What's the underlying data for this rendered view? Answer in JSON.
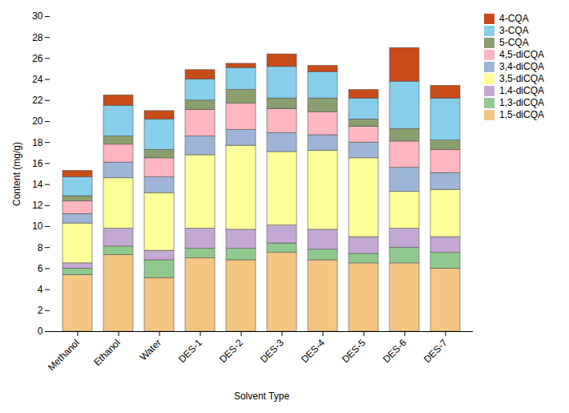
{
  "chart_data": {
    "type": "bar",
    "stacked": true,
    "xlabel": "Solvent Type",
    "ylabel": "Content (mg/g)",
    "categories": [
      "Methanol",
      "Ethanol",
      "Water",
      "DES-1",
      "DES-2",
      "DES-3",
      "DES-4",
      "DES-5",
      "DES-6",
      "DES-7"
    ],
    "series": [
      {
        "name": "1,5-diCQA",
        "color": "#F5C584",
        "values": [
          5.4,
          7.3,
          5.1,
          7.0,
          6.8,
          7.5,
          6.8,
          6.5,
          6.5,
          6.0
        ]
      },
      {
        "name": "1,3-diCQA",
        "color": "#90C990",
        "values": [
          0.6,
          0.8,
          1.7,
          0.9,
          1.1,
          0.9,
          1.0,
          0.9,
          1.5,
          1.5
        ]
      },
      {
        "name": "1,4-diCQA",
        "color": "#C4A8D4",
        "values": [
          0.5,
          1.7,
          0.9,
          1.9,
          1.8,
          1.7,
          1.9,
          1.6,
          1.8,
          1.5
        ]
      },
      {
        "name": "3,5-diCQA",
        "color": "#FFFF99",
        "values": [
          3.8,
          4.8,
          5.5,
          7.0,
          8.0,
          7.0,
          7.5,
          7.5,
          3.5,
          4.5
        ]
      },
      {
        "name": "3,4-diCQA",
        "color": "#9EB5D8",
        "values": [
          0.9,
          1.5,
          1.5,
          1.8,
          1.5,
          1.8,
          1.5,
          1.5,
          2.3,
          1.6
        ]
      },
      {
        "name": "4,5-diCQA",
        "color": "#FFB6C1",
        "values": [
          1.2,
          1.7,
          1.8,
          2.5,
          2.5,
          2.3,
          2.2,
          1.5,
          2.5,
          2.2
        ]
      },
      {
        "name": "5-CQA",
        "color": "#8B9E6E",
        "values": [
          0.5,
          0.8,
          0.8,
          0.9,
          1.3,
          1.0,
          1.3,
          0.7,
          1.2,
          0.9
        ]
      },
      {
        "name": "3-CQA",
        "color": "#87CEEB",
        "values": [
          1.8,
          2.9,
          2.9,
          2.0,
          2.1,
          3.0,
          2.5,
          2.0,
          4.5,
          4.0
        ]
      },
      {
        "name": "4-CQA",
        "color": "#C84B1A",
        "values": [
          0.6,
          1.0,
          0.8,
          0.9,
          0.4,
          1.2,
          0.6,
          0.8,
          3.2,
          1.2
        ]
      }
    ],
    "ylim": [
      0,
      30
    ],
    "yticks": [
      0,
      2,
      4,
      6,
      8,
      10,
      12,
      14,
      16,
      18,
      20,
      22,
      24,
      26,
      28,
      30
    ],
    "grid": false,
    "legend": "upper right"
  }
}
